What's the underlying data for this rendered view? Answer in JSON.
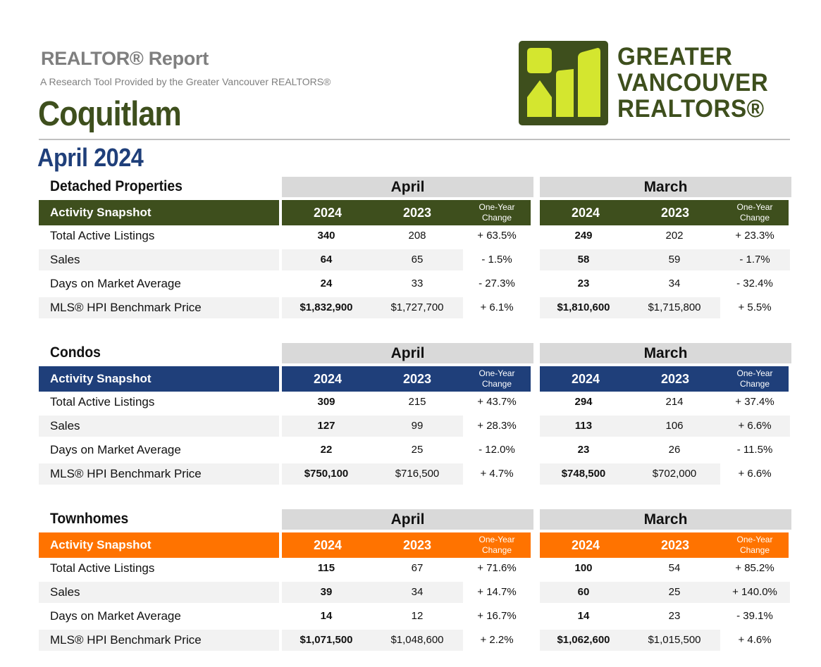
{
  "header": {
    "report_title": "REALTOR® Report",
    "subtitle": "A Research Tool Provided by the Greater Vancouver REALTORS®",
    "area": "Coquitlam",
    "period": "April 2024"
  },
  "logo": {
    "lines": [
      "GREATER",
      "VANCOUVER",
      "REALTORS®"
    ],
    "mark_icon": "gvr-logo-mark",
    "colors": {
      "dark": "#3e4f1d",
      "lime": "#d4e62f"
    }
  },
  "colors": {
    "detached": "#3e4f1d",
    "condos": "#1f3f7a",
    "townhomes": "#ff7300",
    "period_header_bg": "#d9d9d9",
    "row_shade": "#f2f2f2"
  },
  "sections": [
    {
      "title": "Detached Properties",
      "snapshot_label": "Activity Snapshot",
      "periods": [
        {
          "name": "April",
          "year1": "2024",
          "year2": "2023",
          "change_label": "One-Year Change"
        },
        {
          "name": "March",
          "year1": "2024",
          "year2": "2023",
          "change_label": "One-Year Change"
        }
      ],
      "rows": [
        {
          "label": "Total Active Listings",
          "a": [
            "340",
            "208",
            "+ 63.5%"
          ],
          "m": [
            "249",
            "202",
            "+ 23.3%"
          ]
        },
        {
          "label": "Sales",
          "a": [
            "64",
            "65",
            "- 1.5%"
          ],
          "m": [
            "58",
            "59",
            "- 1.7%"
          ]
        },
        {
          "label": "Days on Market Average",
          "a": [
            "24",
            "33",
            "- 27.3%"
          ],
          "m": [
            "23",
            "34",
            "- 32.4%"
          ]
        },
        {
          "label": "MLS® HPI Benchmark Price",
          "a": [
            "$1,832,900",
            "$1,727,700",
            "+ 6.1%"
          ],
          "m": [
            "$1,810,600",
            "$1,715,800",
            "+ 5.5%"
          ]
        }
      ]
    },
    {
      "title": "Condos",
      "snapshot_label": "Activity Snapshot",
      "periods": [
        {
          "name": "April",
          "year1": "2024",
          "year2": "2023",
          "change_label": "One-Year Change"
        },
        {
          "name": "March",
          "year1": "2024",
          "year2": "2023",
          "change_label": "One-Year Change"
        }
      ],
      "rows": [
        {
          "label": "Total Active Listings",
          "a": [
            "309",
            "215",
            "+ 43.7%"
          ],
          "m": [
            "294",
            "214",
            "+ 37.4%"
          ]
        },
        {
          "label": "Sales",
          "a": [
            "127",
            "99",
            "+ 28.3%"
          ],
          "m": [
            "113",
            "106",
            "+ 6.6%"
          ]
        },
        {
          "label": "Days on Market Average",
          "a": [
            "22",
            "25",
            "- 12.0%"
          ],
          "m": [
            "23",
            "26",
            "- 11.5%"
          ]
        },
        {
          "label": "MLS® HPI Benchmark Price",
          "a": [
            "$750,100",
            "$716,500",
            "+ 4.7%"
          ],
          "m": [
            "$748,500",
            "$702,000",
            "+ 6.6%"
          ]
        }
      ]
    },
    {
      "title": "Townhomes",
      "snapshot_label": "Activity Snapshot",
      "periods": [
        {
          "name": "April",
          "year1": "2024",
          "year2": "2023",
          "change_label": "One-Year Change"
        },
        {
          "name": "March",
          "year1": "2024",
          "year2": "2023",
          "change_label": "One-Year Change"
        }
      ],
      "rows": [
        {
          "label": "Total Active Listings",
          "a": [
            "115",
            "67",
            "+ 71.6%"
          ],
          "m": [
            "100",
            "54",
            "+ 85.2%"
          ]
        },
        {
          "label": "Sales",
          "a": [
            "39",
            "34",
            "+ 14.7%"
          ],
          "m": [
            "60",
            "25",
            "+ 140.0%"
          ]
        },
        {
          "label": "Days on Market Average",
          "a": [
            "14",
            "12",
            "+ 16.7%"
          ],
          "m": [
            "14",
            "23",
            "- 39.1%"
          ]
        },
        {
          "label": "MLS® HPI Benchmark Price",
          "a": [
            "$1,071,500",
            "$1,048,600",
            "+ 2.2%"
          ],
          "m": [
            "$1,062,600",
            "$1,015,500",
            "+ 4.6%"
          ]
        }
      ]
    }
  ]
}
